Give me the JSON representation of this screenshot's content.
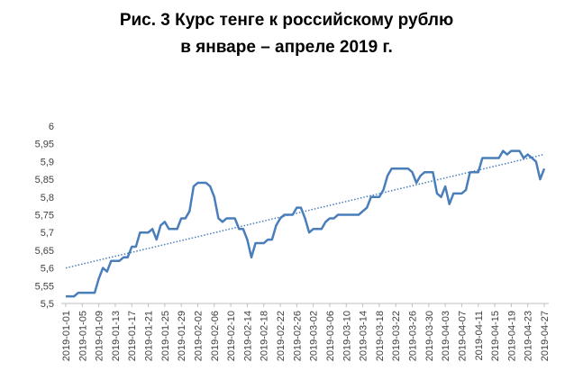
{
  "chart_data": {
    "type": "line",
    "title": [
      "Рис. 3 Курс тенге к российскому рублю",
      "в январе – апреле 2019 г."
    ],
    "categories": [
      "2019-01-01",
      null,
      null,
      null,
      "2019-01-05",
      null,
      null,
      null,
      "2019-01-09",
      null,
      null,
      null,
      "2019-01-13",
      null,
      null,
      null,
      "2019-01-17",
      null,
      null,
      null,
      "2019-01-21",
      null,
      null,
      null,
      "2019-01-25",
      null,
      null,
      null,
      "2019-01-29",
      null,
      null,
      null,
      "2019-02-02",
      null,
      null,
      null,
      "2019-02-06",
      null,
      null,
      null,
      "2019-02-10",
      null,
      null,
      null,
      "2019-02-14",
      null,
      null,
      null,
      "2019-02-18",
      null,
      null,
      null,
      "2019-02-22",
      null,
      null,
      null,
      "2019-02-26",
      null,
      null,
      null,
      "2019-03-02",
      null,
      null,
      null,
      "2019-03-06",
      null,
      null,
      null,
      "2019-03-10",
      null,
      null,
      null,
      "2019-03-14",
      null,
      null,
      null,
      "2019-03-18",
      null,
      null,
      null,
      "2019-03-22",
      null,
      null,
      null,
      "2019-03-26",
      null,
      null,
      null,
      "2019-03-30",
      null,
      null,
      null,
      "2019-04-03",
      null,
      null,
      null,
      "2019-04-07",
      null,
      null,
      null,
      "2019-04-11",
      null,
      null,
      null,
      "2019-04-15",
      null,
      null,
      null,
      "2019-04-19",
      null,
      null,
      null,
      "2019-04-23",
      null,
      null,
      null,
      "2019-04-27"
    ],
    "series": [
      {
        "color": "#4a7ebb",
        "values": [
          5.52,
          5.52,
          5.52,
          5.53,
          5.53,
          5.53,
          5.53,
          5.53,
          5.57,
          5.6,
          5.59,
          5.62,
          5.62,
          5.62,
          5.63,
          5.63,
          5.66,
          5.66,
          5.7,
          5.7,
          5.7,
          5.71,
          5.68,
          5.72,
          5.73,
          5.71,
          5.71,
          5.71,
          5.74,
          5.74,
          5.76,
          5.83,
          5.84,
          5.84,
          5.84,
          5.83,
          5.8,
          5.74,
          5.73,
          5.74,
          5.74,
          5.74,
          5.71,
          5.71,
          5.68,
          5.63,
          5.67,
          5.67,
          5.67,
          5.68,
          5.68,
          5.72,
          5.74,
          5.75,
          5.75,
          5.75,
          5.77,
          5.77,
          5.74,
          5.7,
          5.71,
          5.71,
          5.71,
          5.73,
          5.74,
          5.74,
          5.75,
          5.75,
          5.75,
          5.75,
          5.75,
          5.75,
          5.76,
          5.77,
          5.8,
          5.8,
          5.8,
          5.82,
          5.86,
          5.88,
          5.88,
          5.88,
          5.88,
          5.88,
          5.87,
          5.84,
          5.86,
          5.87,
          5.87,
          5.87,
          5.81,
          5.8,
          5.83,
          5.78,
          5.81,
          5.81,
          5.81,
          5.82,
          5.87,
          5.87,
          5.87,
          5.91,
          5.91,
          5.91,
          5.91,
          5.91,
          5.93,
          5.92,
          5.93,
          5.93,
          5.93,
          5.91,
          5.92,
          5.91,
          5.9,
          5.85,
          5.88
        ]
      }
    ],
    "trend_line": {
      "color": "#4a7ebb",
      "values": [
        5.6,
        5.92
      ]
    },
    "ylim": [
      5.5,
      6
    ],
    "yticks": [
      {
        "value": 5.5,
        "label": "5,5"
      },
      {
        "value": 5.55,
        "label": "5,55"
      },
      {
        "value": 5.6,
        "label": "5,6"
      },
      {
        "value": 5.65,
        "label": "5,65"
      },
      {
        "value": 5.7,
        "label": "5,7"
      },
      {
        "value": 5.75,
        "label": "5,75"
      },
      {
        "value": 5.8,
        "label": "5,8"
      },
      {
        "value": 5.85,
        "label": "5,85"
      },
      {
        "value": 5.9,
        "label": "5,9"
      },
      {
        "value": 5.95,
        "label": "5,95"
      },
      {
        "value": 6,
        "label": "6"
      }
    ],
    "grid": false
  }
}
